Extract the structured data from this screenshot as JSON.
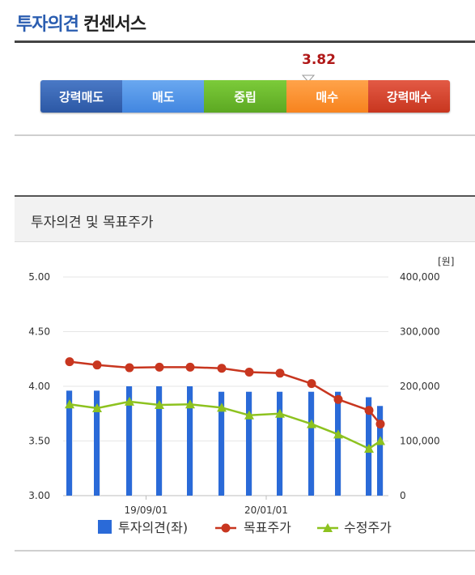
{
  "header": {
    "title_main": "투자의견",
    "title_sub": "컨센서스"
  },
  "consensus": {
    "value": "3.82",
    "value_color": "#b01818",
    "scale": [
      {
        "label": "강력매도",
        "color": "#2c58a5"
      },
      {
        "label": "매도",
        "color": "#4286e0"
      },
      {
        "label": "중립",
        "color": "#5ca822"
      },
      {
        "label": "매수",
        "color": "#f7831e"
      },
      {
        "label": "강력매수",
        "color": "#c8361f"
      }
    ]
  },
  "section": {
    "title": "투자의견 및 목표주가"
  },
  "chart_data": {
    "type": "bar",
    "left_axis": {
      "range": [
        3.0,
        5.0
      ],
      "ticks": [
        "5.00",
        "4.50",
        "4.00",
        "3.50",
        "3.00"
      ]
    },
    "right_axis": {
      "unit": "[원]",
      "range": [
        0,
        400000
      ],
      "ticks": [
        "400,000",
        "300,000",
        "200,000",
        "100,000",
        "0"
      ]
    },
    "x_ticks": [
      {
        "label": "19/09/01",
        "index": 3
      },
      {
        "label": "20/01/01",
        "index": 7
      }
    ],
    "grid": true,
    "legend_position": "bottom",
    "series": [
      {
        "name": "투자의견(좌)",
        "type": "bar",
        "axis": "left",
        "color": "#2a6ad8",
        "values": [
          3.96,
          3.96,
          4.0,
          4.0,
          4.0,
          3.95,
          3.95,
          3.95,
          3.95,
          3.95,
          3.9,
          3.82
        ]
      },
      {
        "name": "목표주가",
        "type": "line",
        "axis": "right",
        "color": "#c8361f",
        "marker": "circle",
        "values": [
          245000,
          239000,
          234000,
          235000,
          235000,
          233000,
          226000,
          224000,
          205000,
          176000,
          156000,
          131000
        ]
      },
      {
        "name": "수정주가",
        "type": "line",
        "axis": "right",
        "color": "#8dc21f",
        "marker": "triangle",
        "values": [
          167000,
          160000,
          172000,
          166000,
          167000,
          161000,
          147000,
          150000,
          131000,
          112000,
          86000,
          100000
        ]
      }
    ]
  }
}
